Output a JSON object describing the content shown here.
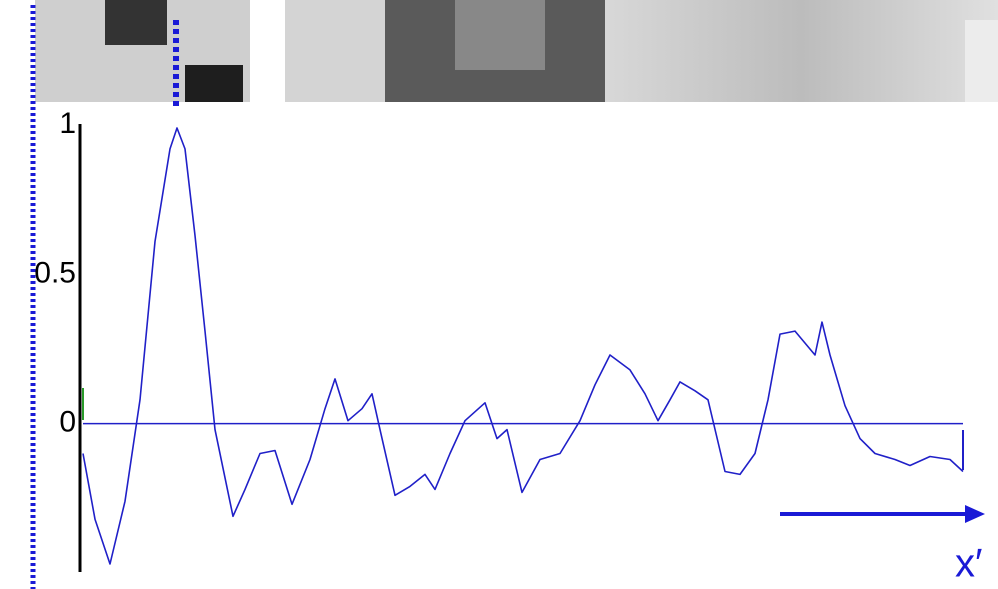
{
  "chart_data": {
    "type": "line",
    "xlabel": "x′",
    "x": [
      0,
      12,
      27,
      42,
      57,
      72,
      87,
      94,
      102,
      112,
      122,
      132,
      150,
      162,
      177,
      192,
      209,
      227,
      242,
      252,
      265,
      279,
      289,
      297,
      312,
      327,
      342,
      352,
      367,
      382,
      402,
      414,
      424,
      439,
      457,
      477,
      497,
      512,
      527,
      547,
      562,
      575,
      587,
      597,
      612,
      625,
      642,
      657,
      672,
      685,
      697,
      712,
      732,
      739,
      747,
      762,
      777,
      792,
      812,
      827,
      847,
      867,
      880
    ],
    "series": [
      {
        "name": null,
        "color": "#2020c8",
        "values": [
          -0.1,
          -0.32,
          -0.47,
          -0.26,
          0.08,
          0.61,
          0.92,
          0.99,
          0.92,
          0.63,
          0.31,
          -0.02,
          -0.31,
          -0.22,
          -0.1,
          -0.09,
          -0.27,
          -0.12,
          0.05,
          0.15,
          0.01,
          0.05,
          0.1,
          -0.02,
          -0.24,
          -0.21,
          -0.17,
          -0.22,
          -0.1,
          0.01,
          0.07,
          -0.05,
          -0.02,
          -0.23,
          -0.12,
          -0.1,
          0.01,
          0.13,
          0.23,
          0.18,
          0.1,
          0.01,
          0.08,
          0.14,
          0.11,
          0.08,
          -0.16,
          -0.17,
          -0.1,
          0.08,
          0.3,
          0.31,
          0.23,
          0.34,
          0.23,
          0.06,
          -0.05,
          -0.1,
          -0.12,
          -0.14,
          -0.11,
          -0.12,
          -0.16
        ]
      }
    ],
    "xlim": [
      0,
      880
    ],
    "ylim": [
      -0.5,
      1.0
    ],
    "yticks": [
      1,
      0.5,
      0
    ]
  }
}
